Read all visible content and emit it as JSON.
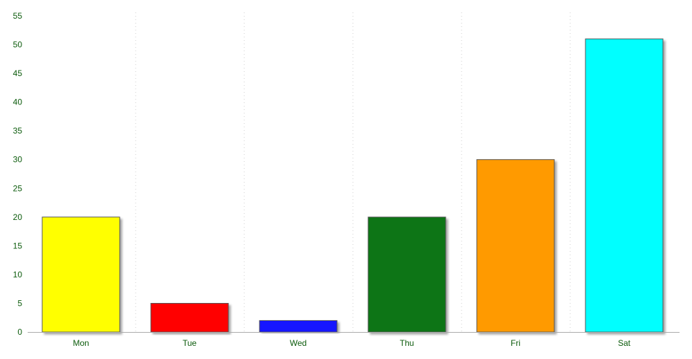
{
  "chart_data": {
    "type": "bar",
    "title": "",
    "xlabel": "",
    "ylabel": "",
    "categories": [
      "Mon",
      "Tue",
      "Wed",
      "Thu",
      "Fri",
      "Sat"
    ],
    "values": [
      20,
      5,
      2,
      20,
      30,
      51
    ],
    "bar_colors": [
      "#ffff00",
      "#ff0000",
      "#1414ff",
      "#0b7512",
      "#ff9a00",
      "#00ffff"
    ],
    "bar_border_color": "#555555",
    "ylim": [
      0,
      55
    ],
    "yticks": [
      "0",
      "5",
      "10",
      "15",
      "20",
      "25",
      "30",
      "35",
      "40",
      "45",
      "50",
      "55"
    ],
    "grid": {
      "vertical": true,
      "horizontal": false,
      "style": "dotted",
      "color": "#cccccc"
    },
    "axis_color": "#aaaaaa",
    "tick_label_color": "#0a5a0a",
    "legend": "none"
  }
}
